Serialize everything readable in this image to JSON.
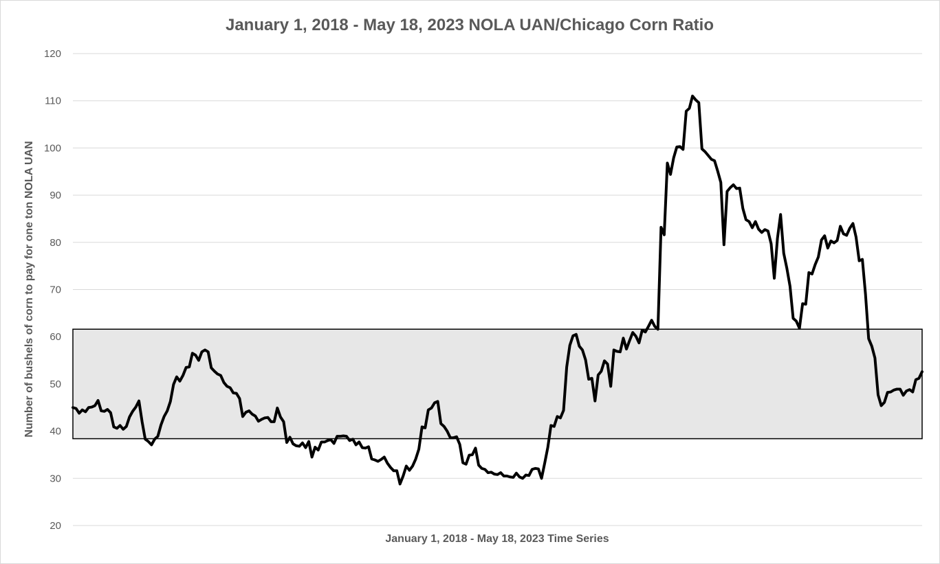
{
  "chart_data": {
    "type": "line",
    "title": "January 1, 2018 - May 18, 2023 NOLA UAN/Chicago Corn Ratio",
    "xlabel": "January 1, 2018 - May 18, 2023 Time Series",
    "ylabel": "Number of bushels of corn to pay for one ton NOLA UAN",
    "ylim": [
      20,
      120
    ],
    "yticks": [
      20,
      30,
      40,
      50,
      60,
      70,
      80,
      90,
      100,
      110,
      120
    ],
    "grid": true,
    "legend": "none",
    "band": {
      "lower": 38.4,
      "upper": 61.6,
      "fill": "#e7e7e7",
      "stroke": "#000000"
    },
    "line_color": "#000000",
    "series": [
      {
        "values": [
          45.0,
          44.8,
          43.8,
          44.5,
          44.1,
          45.0,
          45.1,
          45.4,
          46.5,
          44.3,
          44.2,
          44.6,
          43.9,
          40.9,
          40.6,
          41.2,
          40.4,
          41.0,
          43.0,
          44.2,
          45.1,
          46.4,
          42.0,
          38.3,
          37.8,
          37.1,
          38.3,
          38.9,
          41.3,
          43.1,
          44.3,
          46.3,
          49.9,
          51.5,
          50.6,
          51.8,
          53.5,
          53.6,
          56.5,
          56.1,
          55.0,
          56.8,
          57.2,
          56.8,
          53.4,
          52.7,
          52.1,
          51.8,
          50.3,
          49.5,
          49.2,
          48.1,
          48.0,
          46.9,
          43.1,
          44.0,
          44.3,
          43.6,
          43.2,
          42.1,
          42.5,
          42.8,
          42.9,
          42.0,
          42.0,
          44.9,
          43.0,
          42.0,
          37.6,
          38.7,
          37.3,
          36.9,
          36.8,
          37.5,
          36.5,
          37.8,
          34.5,
          36.6,
          36.0,
          37.7,
          37.7,
          38.0,
          38.2,
          37.4,
          38.9,
          38.9,
          39.0,
          38.9,
          38.0,
          38.3,
          37.1,
          37.7,
          36.5,
          36.4,
          36.7,
          34.1,
          33.9,
          33.6,
          34.0,
          34.5,
          33.2,
          32.3,
          31.6,
          31.6,
          28.8,
          30.5,
          32.6,
          31.7,
          32.6,
          34.1,
          36.2,
          40.9,
          40.7,
          44.5,
          44.9,
          46.0,
          46.3,
          41.6,
          41.0,
          40.0,
          38.6,
          38.6,
          38.8,
          37.2,
          33.3,
          33.0,
          34.9,
          35.0,
          36.4,
          32.8,
          32.1,
          31.9,
          31.2,
          31.3,
          30.9,
          30.8,
          31.2,
          30.5,
          30.5,
          30.3,
          30.2,
          31.1,
          30.3,
          30.0,
          30.7,
          30.6,
          31.9,
          32.1,
          32.0,
          30.0,
          33.2,
          36.6,
          41.2,
          41.0,
          43.1,
          42.8,
          44.4,
          53.6,
          58.2,
          60.2,
          60.5,
          58.0,
          57.2,
          55.1,
          51.0,
          51.2,
          46.4,
          51.9,
          52.7,
          54.9,
          54.2,
          49.5,
          57.2,
          56.9,
          56.8,
          59.7,
          57.4,
          59.2,
          60.9,
          60.1,
          58.7,
          61.4,
          61.0,
          62.2,
          63.5,
          62.2,
          61.6,
          83.2,
          81.6,
          96.8,
          94.4,
          97.9,
          100.2,
          100.3,
          99.7,
          107.8,
          108.4,
          111.0,
          110.2,
          109.6,
          99.8,
          99.2,
          98.4,
          97.6,
          97.3,
          95.1,
          92.7,
          79.5,
          90.8,
          91.6,
          92.2,
          91.4,
          91.5,
          87.2,
          84.8,
          84.4,
          83.1,
          84.4,
          82.8,
          82.1,
          82.7,
          82.4,
          79.7,
          72.4,
          80.8,
          85.9,
          77.7,
          74.5,
          70.7,
          63.9,
          63.3,
          61.8,
          67.0,
          66.9,
          73.6,
          73.3,
          75.3,
          76.9,
          80.5,
          81.4,
          78.8,
          80.3,
          79.9,
          80.4,
          83.4,
          81.8,
          81.5,
          83.0,
          84.0,
          81.1,
          76.1,
          76.4,
          69.0,
          59.6,
          58.0,
          55.5,
          47.7,
          45.4,
          46.1,
          48.2,
          48.3,
          48.7,
          48.9,
          48.9,
          47.6,
          48.5,
          48.8,
          48.3,
          50.9,
          51.2,
          52.6
        ]
      }
    ]
  }
}
